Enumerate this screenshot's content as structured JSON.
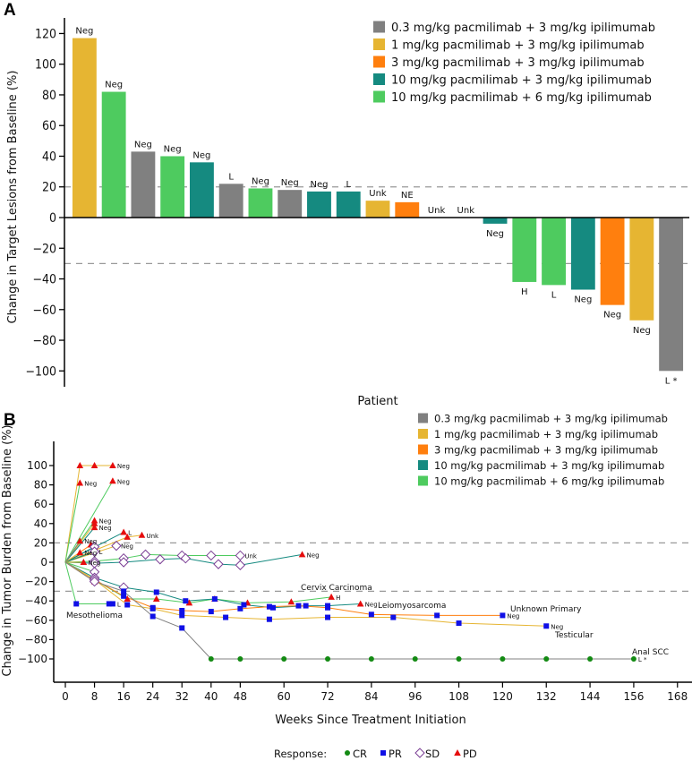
{
  "colors": {
    "0.3": "#808080",
    "1": "#e6b532",
    "3": "#ff7f0e",
    "10_3": "#158a80",
    "10_6": "#4ecb5f",
    "CR": "#138a13",
    "PR": "#1010e6",
    "SD": "#7a3d94",
    "PD": "#e60d0d"
  },
  "chart_data": [
    {
      "type": "bar",
      "panel_label": "A",
      "title": "",
      "xlabel": "Patient",
      "ylabel": "Change in Target Lesions from Baseline (%)",
      "ylim": [
        -110,
        125
      ],
      "yticks": [
        "120",
        "100",
        "80",
        "60",
        "40",
        "20",
        "0",
        "−20",
        "−40",
        "−60",
        "−80",
        "−100"
      ],
      "ytick_values": [
        120,
        100,
        80,
        60,
        40,
        20,
        0,
        -20,
        -40,
        -60,
        -80,
        -100
      ],
      "reference_lines": [
        20,
        -30
      ],
      "legend": [
        {
          "key": "0.3",
          "label": "0.3 mg/kg pacmilimab + 3 mg/kg ipilimumab"
        },
        {
          "key": "1",
          "label": "1 mg/kg pacmilimab + 3 mg/kg ipilimumab"
        },
        {
          "key": "3",
          "label": "3 mg/kg pacmilimab + 3 mg/kg ipilimumab"
        },
        {
          "key": "10_3",
          "label": "10 mg/kg pacmilimab + 3 mg/kg ipilimumab"
        },
        {
          "key": "10_6",
          "label": "10 mg/kg pacmilimab + 6 mg/kg ipilimumab"
        }
      ],
      "legend_position": "top-right",
      "bars": [
        {
          "value": 117,
          "group": "1",
          "label": "Neg"
        },
        {
          "value": 82,
          "group": "10_6",
          "label": "Neg"
        },
        {
          "value": 43,
          "group": "0.3",
          "label": "Neg"
        },
        {
          "value": 40,
          "group": "10_6",
          "label": "Neg"
        },
        {
          "value": 36,
          "group": "10_3",
          "label": "Neg"
        },
        {
          "value": 22,
          "group": "0.3",
          "label": "L"
        },
        {
          "value": 19,
          "group": "10_6",
          "label": "Neg"
        },
        {
          "value": 18,
          "group": "0.3",
          "label": "Neg"
        },
        {
          "value": 17,
          "group": "10_3",
          "label": "Neg"
        },
        {
          "value": 17,
          "group": "10_3",
          "label": "L"
        },
        {
          "value": 11,
          "group": "1",
          "label": "Unk"
        },
        {
          "value": 10,
          "group": "3",
          "label": "NE"
        },
        {
          "value": 0,
          "group": "0.3",
          "label": "Unk"
        },
        {
          "value": 0,
          "group": "0.3",
          "label": "Unk"
        },
        {
          "value": -4,
          "group": "10_3",
          "label": "Neg"
        },
        {
          "value": -42,
          "group": "10_6",
          "label": "H"
        },
        {
          "value": -44,
          "group": "10_6",
          "label": "L"
        },
        {
          "value": -47,
          "group": "10_3",
          "label": "Neg"
        },
        {
          "value": -57,
          "group": "3",
          "label": "Neg"
        },
        {
          "value": -67,
          "group": "1",
          "label": "Neg"
        },
        {
          "value": -100,
          "group": "0.3",
          "label": "L *"
        }
      ]
    },
    {
      "type": "line",
      "panel_label": "B",
      "xlabel": "Weeks Since Treatment Initiation",
      "ylabel": "Change in Tumor Burden from Baseline (%)",
      "xlim": [
        -1,
        170
      ],
      "ylim": [
        -125,
        115
      ],
      "xticks": [
        0,
        8,
        16,
        24,
        32,
        40,
        48,
        60,
        72,
        84,
        96,
        108,
        120,
        132,
        144,
        156,
        168
      ],
      "yticks": [
        100,
        80,
        60,
        40,
        20,
        0,
        -20,
        -40,
        -60,
        -80,
        -100
      ],
      "ytick_labels": [
        "100",
        "80",
        "60",
        "40",
        "20",
        "0",
        "−20",
        "−40",
        "−60",
        "−80",
        "−100"
      ],
      "reference_lines": [
        20,
        -30
      ],
      "legend": [
        {
          "key": "0.3",
          "label": "0.3 mg/kg pacmilimab + 3 mg/kg ipilimumab"
        },
        {
          "key": "1",
          "label": "1 mg/kg pacmilimab + 3 mg/kg ipilimumab"
        },
        {
          "key": "3",
          "label": "3 mg/kg pacmilimab + 3 mg/kg ipilimumab"
        },
        {
          "key": "10_3",
          "label": "10 mg/kg pacmilimab + 3 mg/kg ipilimumab"
        },
        {
          "key": "10_6",
          "label": "10 mg/kg pacmilimab + 6 mg/kg ipilimumab"
        }
      ],
      "response_legend": {
        "title": "Response:",
        "items": [
          {
            "key": "CR",
            "label": "CR",
            "marker": "circle"
          },
          {
            "key": "PR",
            "label": "PR",
            "marker": "square"
          },
          {
            "key": "SD",
            "label": "SD",
            "marker": "diamond"
          },
          {
            "key": "PD",
            "label": "PD",
            "marker": "triangle"
          }
        ]
      },
      "series": [
        {
          "group": "1",
          "points": [
            [
              0,
              0,
              ""
            ],
            [
              4,
              100,
              "PD"
            ],
            [
              8,
              100,
              "PD"
            ],
            [
              13,
              100,
              "PD"
            ]
          ],
          "end_label": "Neg"
        },
        {
          "group": "10_6",
          "points": [
            [
              0,
              0,
              ""
            ],
            [
              4,
              82,
              "PD"
            ]
          ],
          "end_label": "Neg"
        },
        {
          "group": "10_6",
          "points": [
            [
              0,
              0,
              ""
            ],
            [
              13,
              84,
              "PD"
            ]
          ],
          "end_label": "Neg"
        },
        {
          "group": "10_6",
          "points": [
            [
              0,
              0,
              ""
            ],
            [
              8,
              43,
              "PD"
            ]
          ],
          "end_label": "Neg"
        },
        {
          "group": "1",
          "points": [
            [
              0,
              0,
              ""
            ],
            [
              8,
              40,
              "PD"
            ]
          ],
          "end_label": ""
        },
        {
          "group": "10_3",
          "points": [
            [
              0,
              0,
              ""
            ],
            [
              8,
              36,
              "PD"
            ]
          ],
          "end_label": "Neg"
        },
        {
          "group": "10_3",
          "points": [
            [
              0,
              0,
              ""
            ],
            [
              16,
              31,
              "PD"
            ]
          ],
          "end_label": "L"
        },
        {
          "group": "1",
          "points": [
            [
              0,
              0,
              ""
            ],
            [
              17,
              26,
              "PD"
            ],
            [
              21,
              28,
              "PD"
            ]
          ],
          "end_label": "Unk"
        },
        {
          "group": "0.3",
          "points": [
            [
              0,
              0,
              ""
            ],
            [
              4,
              22,
              "PD"
            ]
          ],
          "end_label": "Neg"
        },
        {
          "group": "3",
          "points": [
            [
              0,
              0,
              ""
            ],
            [
              7,
              18,
              "PD"
            ]
          ],
          "end_label": ""
        },
        {
          "group": "1",
          "points": [
            [
              0,
              0,
              ""
            ],
            [
              14,
              17,
              "SD"
            ]
          ],
          "end_label": "Neg"
        },
        {
          "group": "10_3",
          "points": [
            [
              0,
              0,
              ""
            ],
            [
              8,
              16,
              "SD"
            ]
          ],
          "end_label": ""
        },
        {
          "group": "1",
          "points": [
            [
              0,
              0,
              ""
            ],
            [
              4,
              10,
              "PD"
            ]
          ],
          "end_label": "Neg"
        },
        {
          "group": "10_3",
          "points": [
            [
              0,
              0,
              ""
            ],
            [
              8,
              11,
              "SD"
            ]
          ],
          "end_label": "L"
        },
        {
          "group": "10_6",
          "points": [
            [
              0,
              0,
              ""
            ],
            [
              8,
              1,
              "SD"
            ],
            [
              16,
              4,
              "SD"
            ],
            [
              22,
              8,
              "SD"
            ],
            [
              32,
              7,
              "SD"
            ],
            [
              40,
              7,
              "SD"
            ],
            [
              48,
              7,
              "SD"
            ]
          ],
          "end_label": "Unk"
        },
        {
          "group": "10_3",
          "points": [
            [
              0,
              0,
              ""
            ],
            [
              8,
              -1,
              "SD"
            ],
            [
              16,
              0,
              "SD"
            ],
            [
              26,
              3,
              "SD"
            ],
            [
              33,
              4,
              "SD"
            ],
            [
              42,
              -2,
              "SD"
            ],
            [
              48,
              -3,
              "SD"
            ],
            [
              65,
              8,
              "PD"
            ]
          ],
          "end_label": "Neg"
        },
        {
          "group": "1",
          "points": [
            [
              0,
              0,
              ""
            ],
            [
              5,
              0,
              "PD"
            ]
          ],
          "end_label": "Neg"
        },
        {
          "group": "10_6",
          "points": [
            [
              0,
              0,
              ""
            ],
            [
              8,
              -10,
              "SD"
            ]
          ],
          "end_label": ""
        },
        {
          "group": "3",
          "points": [
            [
              0,
              0,
              ""
            ],
            [
              8,
              -20,
              "PD"
            ]
          ],
          "end_label": ""
        },
        {
          "group": "10_6",
          "points": [
            [
              0,
              0,
              ""
            ],
            [
              3,
              -43,
              "PR"
            ],
            [
              12,
              -43,
              "PR"
            ],
            [
              13,
              -43,
              "PR"
            ]
          ],
          "end_label": "L",
          "annotation": "Mesothelioma"
        },
        {
          "group": "10_6",
          "points": [
            [
              0,
              0,
              ""
            ],
            [
              8,
              -18,
              "SD"
            ],
            [
              17,
              -38,
              "PD"
            ],
            [
              25,
              -38,
              "PD"
            ],
            [
              34,
              -42,
              "PD"
            ],
            [
              41,
              -38,
              "PD"
            ],
            [
              50,
              -42,
              "PD"
            ],
            [
              62,
              -41,
              "PD"
            ],
            [
              73,
              -36,
              "PD"
            ]
          ],
          "end_label": "H",
          "annotation": "Cervix Carcinoma"
        },
        {
          "group": "10_3",
          "points": [
            [
              0,
              0,
              ""
            ],
            [
              8,
              -16,
              "SD"
            ],
            [
              16,
              -26,
              "SD"
            ],
            [
              25,
              -31,
              "PR"
            ],
            [
              33,
              -40,
              "PR"
            ],
            [
              41,
              -38,
              "PR"
            ],
            [
              49,
              -44,
              "PR"
            ],
            [
              57,
              -47,
              "PR"
            ],
            [
              66,
              -45,
              "PR"
            ],
            [
              72,
              -45,
              "PR"
            ],
            [
              81,
              -43,
              "PD"
            ]
          ],
          "end_label": "Neg",
          "annotation": "Leiomyosarcoma"
        },
        {
          "group": "3",
          "points": [
            [
              0,
              0,
              ""
            ],
            [
              8,
              -18,
              "SD"
            ],
            [
              16,
              -35,
              "PR"
            ],
            [
              24,
              -47,
              "PR"
            ],
            [
              32,
              -50,
              "PR"
            ],
            [
              40,
              -51,
              "PR"
            ],
            [
              48,
              -48,
              "PR"
            ],
            [
              56,
              -46,
              "PR"
            ],
            [
              64,
              -45,
              "PR"
            ],
            [
              72,
              -47,
              "PR"
            ],
            [
              84,
              -54,
              "PR"
            ],
            [
              102,
              -55,
              "PR"
            ],
            [
              120,
              -55,
              "PR"
            ]
          ],
          "end_label": "Neg",
          "annotation": "Unknown Primary"
        },
        {
          "group": "1",
          "points": [
            [
              0,
              0,
              ""
            ],
            [
              8,
              -18,
              "SD"
            ],
            [
              17,
              -44,
              "PR"
            ],
            [
              24,
              -48,
              "PR"
            ],
            [
              32,
              -55,
              "PR"
            ],
            [
              44,
              -57,
              "PR"
            ],
            [
              56,
              -59,
              "PR"
            ],
            [
              72,
              -57,
              "PR"
            ],
            [
              90,
              -57,
              "PR"
            ],
            [
              108,
              -63,
              "PR"
            ],
            [
              132,
              -66,
              "PR"
            ]
          ],
          "end_label": "Neg",
          "annotation": "Testicular"
        },
        {
          "group": "0.3",
          "points": [
            [
              0,
              0,
              ""
            ],
            [
              8,
              -20,
              "SD"
            ],
            [
              16,
              -30,
              "PR"
            ],
            [
              24,
              -56,
              "PR"
            ],
            [
              32,
              -68,
              "PR"
            ],
            [
              40,
              -100,
              "CR"
            ],
            [
              48,
              -100,
              "CR"
            ],
            [
              60,
              -100,
              "CR"
            ],
            [
              72,
              -100,
              "CR"
            ],
            [
              84,
              -100,
              "CR"
            ],
            [
              96,
              -100,
              "CR"
            ],
            [
              108,
              -100,
              "CR"
            ],
            [
              120,
              -100,
              "CR"
            ],
            [
              132,
              -100,
              "CR"
            ],
            [
              144,
              -100,
              "CR"
            ],
            [
              156,
              -100,
              "CR"
            ]
          ],
          "end_label": "L *",
          "annotation": "Anal SCC"
        }
      ]
    }
  ]
}
